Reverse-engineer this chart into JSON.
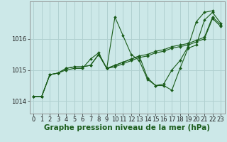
{
  "bg_color": "#cce8e8",
  "grid_color": "#b0d0d0",
  "line_color": "#1a5c1a",
  "xlabel": "Graphe pression niveau de la mer (hPa)",
  "xlabel_fontsize": 7.5,
  "tick_fontsize": 6,
  "yticks": [
    1014,
    1015,
    1016
  ],
  "ylim": [
    1013.6,
    1017.2
  ],
  "xlim": [
    -0.5,
    23.5
  ],
  "xticks": [
    0,
    1,
    2,
    3,
    4,
    5,
    6,
    7,
    8,
    9,
    10,
    11,
    12,
    13,
    14,
    15,
    16,
    17,
    18,
    19,
    20,
    21,
    22,
    23
  ],
  "series": [
    {
      "x": [
        0,
        1,
        2,
        3,
        4,
        5,
        6,
        7,
        8,
        9,
        10,
        11,
        12,
        13,
        14,
        15,
        16,
        17,
        18,
        19,
        20,
        21,
        22
      ],
      "y": [
        1014.15,
        1014.15,
        1014.85,
        1014.9,
        1015.0,
        1015.05,
        1015.05,
        1015.35,
        1015.55,
        1015.05,
        1016.7,
        1016.1,
        1015.5,
        1015.3,
        1014.7,
        1014.5,
        1014.55,
        1015.0,
        1015.3,
        1015.75,
        1016.55,
        1016.85,
        1016.9
      ]
    },
    {
      "x": [
        0,
        1,
        2,
        3,
        4,
        5,
        6,
        7,
        8,
        9,
        10,
        11,
        12,
        13,
        14,
        15,
        16,
        17,
        18,
        19,
        20,
        21,
        22,
        23
      ],
      "y": [
        1014.15,
        1014.15,
        1014.85,
        1014.9,
        1015.05,
        1015.1,
        1015.1,
        1015.15,
        1015.5,
        1015.05,
        1015.15,
        1015.25,
        1015.35,
        1015.45,
        1015.5,
        1015.6,
        1015.65,
        1015.75,
        1015.8,
        1015.85,
        1015.95,
        1016.05,
        1016.7,
        1016.45
      ]
    },
    {
      "x": [
        0,
        1,
        2,
        3,
        4,
        5,
        6,
        7,
        8,
        9,
        10,
        11,
        12,
        13,
        14,
        15,
        16,
        17,
        18,
        19,
        20,
        21,
        22,
        23
      ],
      "y": [
        1014.15,
        1014.15,
        1014.85,
        1014.9,
        1015.05,
        1015.1,
        1015.1,
        1015.15,
        1015.5,
        1015.05,
        1015.1,
        1015.2,
        1015.3,
        1015.4,
        1015.45,
        1015.55,
        1015.6,
        1015.7,
        1015.75,
        1015.8,
        1015.9,
        1016.0,
        1016.65,
        1016.4
      ]
    },
    {
      "x": [
        9,
        10,
        11,
        12,
        13,
        14,
        15,
        16,
        17,
        18,
        19,
        20,
        21,
        22,
        23
      ],
      "y": [
        1015.05,
        1015.15,
        1015.25,
        1015.35,
        1015.45,
        1014.75,
        1014.5,
        1014.5,
        1014.35,
        1015.05,
        1015.7,
        1015.8,
        1016.6,
        1016.85,
        1016.5
      ]
    }
  ]
}
